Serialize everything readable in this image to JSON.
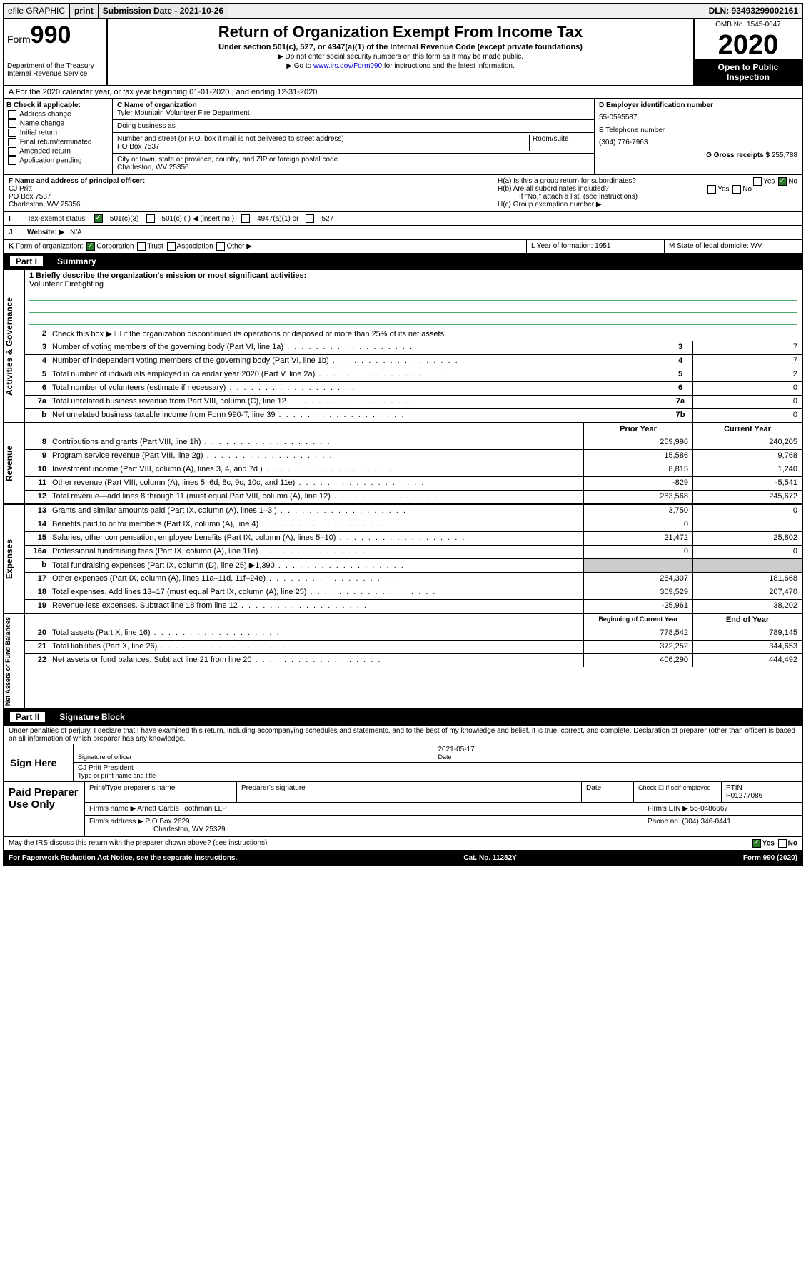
{
  "topbar": {
    "efile": "efile GRAPHIC",
    "print": "print",
    "subdate_label": "Submission Date - ",
    "subdate": "2021-10-26",
    "dln": "DLN: 93493299002161"
  },
  "header": {
    "form_prefix": "Form",
    "form_num": "990",
    "dept": "Department of the Treasury\nInternal Revenue Service",
    "title": "Return of Organization Exempt From Income Tax",
    "subtitle": "Under section 501(c), 527, or 4947(a)(1) of the Internal Revenue Code (except private foundations)",
    "note1": "▶ Do not enter social security numbers on this form as it may be made public.",
    "note2_pre": "▶ Go to ",
    "note2_link": "www.irs.gov/Form990",
    "note2_post": " for instructions and the latest information.",
    "omb": "OMB No. 1545-0047",
    "year": "2020",
    "open": "Open to Public Inspection"
  },
  "rowA": "A For the 2020 calendar year, or tax year beginning 01-01-2020   , and ending 12-31-2020",
  "boxB": {
    "label": "B Check if applicable:",
    "opts": [
      "Address change",
      "Name change",
      "Initial return",
      "Final return/terminated",
      "Amended return",
      "Application pending"
    ]
  },
  "boxC": {
    "name_label": "C Name of organization",
    "name": "Tyler Mountain Volunteer Fire Department",
    "dba_label": "Doing business as",
    "addr_label": "Number and street (or P.O. box if mail is not delivered to street address)",
    "room_label": "Room/suite",
    "addr": "PO Box 7537",
    "city_label": "City or town, state or province, country, and ZIP or foreign postal code",
    "city": "Charleston, WV  25356"
  },
  "boxD": {
    "label": "D Employer identification number",
    "ein": "55-0595587",
    "phone_label": "E Telephone number",
    "phone": "(304) 776-7963",
    "gross_label": "G Gross receipts $ ",
    "gross": "255,788"
  },
  "boxF": {
    "label": "F  Name and address of principal officer:",
    "name": "CJ Pritt",
    "addr1": "PO Box 7537",
    "addr2": "Charleston, WV  25356"
  },
  "boxH": {
    "a": "H(a)  Is this a group return for subordinates?",
    "b": "H(b)  Are all subordinates included?",
    "note": "If \"No,\" attach a list. (see instructions)",
    "c": "H(c)  Group exemption number ▶"
  },
  "rowI": {
    "lbl": "I",
    "text": "Tax-exempt status:",
    "o1": "501(c)(3)",
    "o2": "501(c) (   ) ◀ (insert no.)",
    "o3": "4947(a)(1) or",
    "o4": "527"
  },
  "rowJ": {
    "lbl": "J",
    "text": "Website: ▶",
    "val": "N/A"
  },
  "rowK": {
    "lbl": "K",
    "text": "Form of organization:",
    "opts": [
      "Corporation",
      "Trust",
      "Association",
      "Other ▶"
    ],
    "L": "L Year of formation: 1951",
    "M": "M State of legal domicile: WV"
  },
  "part1": {
    "num": "Part I",
    "title": "Summary"
  },
  "mission_label": "1  Briefly describe the organization's mission or most significant activities:",
  "mission": "Volunteer Firefighting",
  "gov_lines": [
    {
      "n": "2",
      "d": "Check this box ▶ ☐  if the organization discontinued its operations or disposed of more than 25% of its net assets."
    },
    {
      "n": "3",
      "d": "Number of voting members of the governing body (Part VI, line 1a)",
      "box": "3",
      "v": "7"
    },
    {
      "n": "4",
      "d": "Number of independent voting members of the governing body (Part VI, line 1b)",
      "box": "4",
      "v": "7"
    },
    {
      "n": "5",
      "d": "Total number of individuals employed in calendar year 2020 (Part V, line 2a)",
      "box": "5",
      "v": "2"
    },
    {
      "n": "6",
      "d": "Total number of volunteers (estimate if necessary)",
      "box": "6",
      "v": "0"
    },
    {
      "n": "7a",
      "d": "Total unrelated business revenue from Part VIII, column (C), line 12",
      "box": "7a",
      "v": "0"
    },
    {
      "n": "b",
      "d": "Net unrelated business taxable income from Form 990-T, line 39",
      "box": "7b",
      "v": "0"
    }
  ],
  "col_headers": {
    "prior": "Prior Year",
    "current": "Current Year"
  },
  "rev_lines": [
    {
      "n": "8",
      "d": "Contributions and grants (Part VIII, line 1h)",
      "p": "259,996",
      "c": "240,205"
    },
    {
      "n": "9",
      "d": "Program service revenue (Part VIII, line 2g)",
      "p": "15,586",
      "c": "9,768"
    },
    {
      "n": "10",
      "d": "Investment income (Part VIII, column (A), lines 3, 4, and 7d )",
      "p": "8,815",
      "c": "1,240"
    },
    {
      "n": "11",
      "d": "Other revenue (Part VIII, column (A), lines 5, 6d, 8c, 9c, 10c, and 11e)",
      "p": "-829",
      "c": "-5,541"
    },
    {
      "n": "12",
      "d": "Total revenue—add lines 8 through 11 (must equal Part VIII, column (A), line 12)",
      "p": "283,568",
      "c": "245,672"
    }
  ],
  "exp_lines": [
    {
      "n": "13",
      "d": "Grants and similar amounts paid (Part IX, column (A), lines 1–3 )",
      "p": "3,750",
      "c": "0"
    },
    {
      "n": "14",
      "d": "Benefits paid to or for members (Part IX, column (A), line 4)",
      "p": "0",
      "c": ""
    },
    {
      "n": "15",
      "d": "Salaries, other compensation, employee benefits (Part IX, column (A), lines 5–10)",
      "p": "21,472",
      "c": "25,802"
    },
    {
      "n": "16a",
      "d": "Professional fundraising fees (Part IX, column (A), line 11e)",
      "p": "0",
      "c": "0"
    },
    {
      "n": "b",
      "d": "Total fundraising expenses (Part IX, column (D), line 25) ▶1,390",
      "p": "",
      "c": "",
      "shade": true
    },
    {
      "n": "17",
      "d": "Other expenses (Part IX, column (A), lines 11a–11d, 11f–24e)",
      "p": "284,307",
      "c": "181,668"
    },
    {
      "n": "18",
      "d": "Total expenses. Add lines 13–17 (must equal Part IX, column (A), line 25)",
      "p": "309,529",
      "c": "207,470"
    },
    {
      "n": "19",
      "d": "Revenue less expenses. Subtract line 18 from line 12",
      "p": "-25,961",
      "c": "38,202"
    }
  ],
  "na_headers": {
    "begin": "Beginning of Current Year",
    "end": "End of Year"
  },
  "na_lines": [
    {
      "n": "20",
      "d": "Total assets (Part X, line 16)",
      "p": "778,542",
      "c": "789,145"
    },
    {
      "n": "21",
      "d": "Total liabilities (Part X, line 26)",
      "p": "372,252",
      "c": "344,653"
    },
    {
      "n": "22",
      "d": "Net assets or fund balances. Subtract line 21 from line 20",
      "p": "406,290",
      "c": "444,492"
    }
  ],
  "side_labels": {
    "gov": "Activities & Governance",
    "rev": "Revenue",
    "exp": "Expenses",
    "na": "Net Assets or Fund Balances"
  },
  "part2": {
    "num": "Part II",
    "title": "Signature Block"
  },
  "penalties": "Under penalties of perjury, I declare that I have examined this return, including accompanying schedules and statements, and to the best of my knowledge and belief, it is true, correct, and complete. Declaration of preparer (other than officer) is based on all information of which preparer has any knowledge.",
  "sign": {
    "here": "Sign Here",
    "sig_label": "Signature of officer",
    "date": "2021-05-17",
    "date_label": "Date",
    "name": "CJ Pritt President",
    "name_label": "Type or print name and title"
  },
  "prep": {
    "title": "Paid Preparer Use Only",
    "h1": "Print/Type preparer's name",
    "h2": "Preparer's signature",
    "h3": "Date",
    "h4_a": "Check ☐ if self-employed",
    "h4_b": "PTIN",
    "ptin": "P01277086",
    "firm_label": "Firm's name     ▶",
    "firm": "Arnett Carbis Toothman LLP",
    "ein_label": "Firm's EIN ▶",
    "ein": "55-0486667",
    "addr_label": "Firm's address ▶",
    "addr1": "P O Box 2629",
    "addr2": "Charleston, WV  25329",
    "phone_label": "Phone no.",
    "phone": "(304) 346-0441"
  },
  "discuss": "May the IRS discuss this return with the preparer shown above? (see instructions)",
  "yesno": {
    "yes": "Yes",
    "no": "No"
  },
  "footer": {
    "left": "For Paperwork Reduction Act Notice, see the separate instructions.",
    "mid": "Cat. No. 11282Y",
    "right": "Form 990 (2020)"
  }
}
